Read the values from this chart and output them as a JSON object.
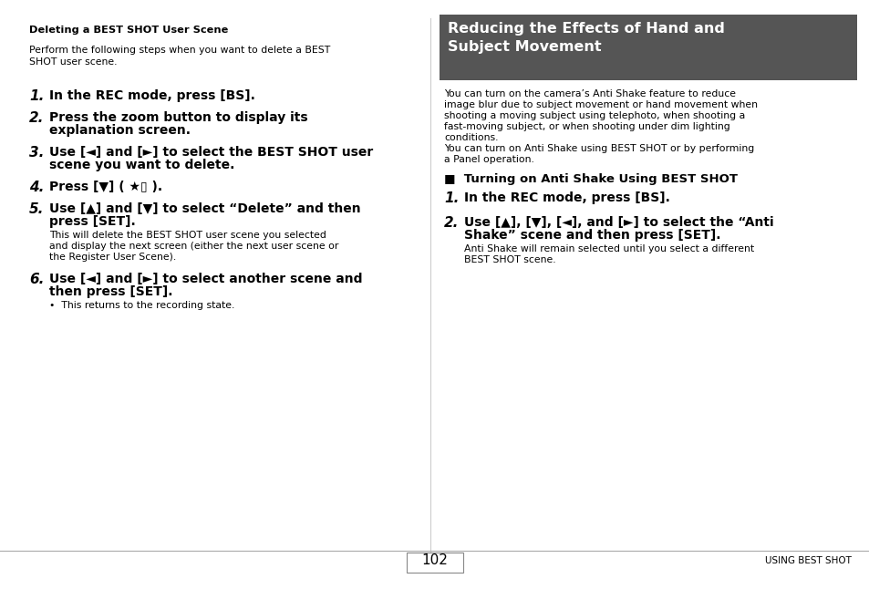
{
  "bg_color": "#ffffff",
  "page_number": "102",
  "footer_right": "USING BEST SHOT",
  "header_bg": "#555555",
  "header_text_line1": "Reducing the Effects of Hand and",
  "header_text_line2": "Subject Movement",
  "header_text_color": "#ffffff",
  "left": {
    "section_title": "Deleting a BEST SHOT User Scene",
    "intro_line1": "Perform the following steps when you want to delete a BEST",
    "intro_line2": "SHOT user scene.",
    "steps": [
      {
        "num": "1.",
        "lines": [
          "In the REC mode, press [BS]."
        ],
        "sub": []
      },
      {
        "num": "2.",
        "lines": [
          "Press the zoom button to display its",
          "explanation screen."
        ],
        "sub": []
      },
      {
        "num": "3.",
        "lines": [
          "Use [◄] and [►] to select the BEST SHOT user",
          "scene you want to delete."
        ],
        "sub": []
      },
      {
        "num": "4.",
        "lines": [
          "Press [▼] ( ★▯ )."
        ],
        "sub": []
      },
      {
        "num": "5.",
        "lines": [
          "Use [▲] and [▼] to select “Delete” and then",
          "press [SET]."
        ],
        "sub": [
          "This will delete the BEST SHOT user scene you selected",
          "and display the next screen (either the next user scene or",
          "the Register User Scene)."
        ]
      },
      {
        "num": "6.",
        "lines": [
          "Use [◄] and [►] to select another scene and",
          "then press [SET]."
        ],
        "sub": [
          "•  This returns to the recording state."
        ]
      }
    ]
  },
  "right": {
    "intro": [
      "You can turn on the camera’s Anti Shake feature to reduce",
      "image blur due to subject movement or hand movement when",
      "shooting a moving subject using telephoto, when shooting a",
      "fast-moving subject, or when shooting under dim lighting",
      "conditions.",
      "You can turn on Anti Shake using BEST SHOT or by performing",
      "a Panel operation."
    ],
    "subsection": "■  Turning on Anti Shake Using BEST SHOT",
    "steps": [
      {
        "num": "1.",
        "lines": [
          "In the REC mode, press [BS]."
        ],
        "sub": []
      },
      {
        "num": "2.",
        "lines": [
          "Use [▲], [▼], [◄], and [►] to select the “Anti",
          "Shake” scene and then press [SET]."
        ],
        "sub": [
          "Anti Shake will remain selected until you select a different",
          "BEST SHOT scene."
        ]
      }
    ]
  }
}
